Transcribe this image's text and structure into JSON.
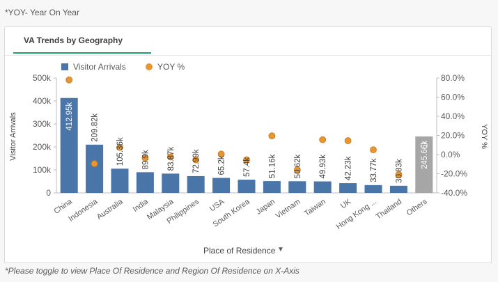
{
  "top_note": "*YOY- Year On Year",
  "panel": {
    "tab_title": "VA Trends by Geography"
  },
  "x_axis_dropdown": {
    "label": "Place of Residence",
    "icon": "caret-down-icon"
  },
  "bottom_note": "*Please toggle to view Place Of Residence and Region Of Residence on X-Axis",
  "colors": {
    "bar": "#4a75a8",
    "bar_others": "#a6a6a6",
    "dot": "#e8962f",
    "tab_accent": "#1ea26b"
  },
  "chart_data": {
    "type": "bar",
    "categories": [
      "China",
      "Indonesia",
      "Australia",
      "India",
      "Malaysia",
      "Philippines",
      "USA",
      "South Korea",
      "Japan",
      "Vietnam",
      "Taiwan",
      "UK",
      "Hong Kong ...",
      "Thailand",
      "Others"
    ],
    "series": [
      {
        "name": "Visitor Arrivals",
        "type": "bar",
        "values": [
          412950,
          209820,
          105360,
          89900,
          83870,
          72990,
          65200,
          57400,
          51160,
          50620,
          49930,
          42230,
          33770,
          30830,
          245660
        ],
        "labels": [
          "412.95k",
          "209.82k",
          "105.36k",
          "89.9k",
          "83.87k",
          "72.99k",
          "65.2k",
          "57.4k",
          "51.16k",
          "50.62k",
          "49.93k",
          "42.23k",
          "33.77k",
          "30.83k",
          "245.66k"
        ]
      },
      {
        "name": "YOY %",
        "type": "scatter",
        "axis": "right",
        "values": [
          78,
          -9.5,
          7.5,
          -3.5,
          -2.5,
          -5.5,
          0.5,
          -5.5,
          19.5,
          -16,
          15.5,
          14.5,
          5,
          -21,
          null
        ]
      }
    ],
    "left_axis": {
      "title": "Visitor Arrivals",
      "ticks": [
        "0",
        "100k",
        "200k",
        "300k",
        "400k",
        "500k"
      ],
      "ylim": [
        0,
        500000
      ]
    },
    "right_axis": {
      "title": "YOY %",
      "ticks": [
        "-40.0%",
        "-20.0%",
        "0.0%",
        "20.0%",
        "40.0%",
        "60.0%",
        "80.0%"
      ],
      "ylim": [
        -40,
        80
      ]
    },
    "legend": {
      "position": "top-left"
    },
    "grid": false
  }
}
